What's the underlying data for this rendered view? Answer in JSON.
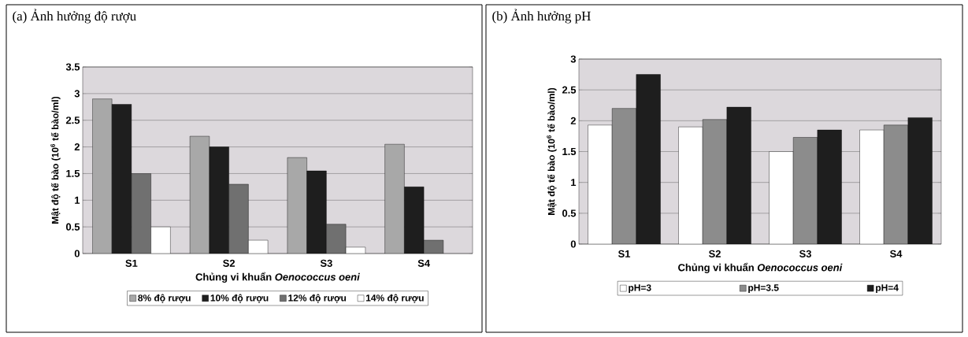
{
  "chart_data": [
    {
      "type": "bar",
      "title": "(a) Ảnh hưởng độ rượu",
      "xlabel": "Chủng vi khuẩn *Oenococcus oeni*",
      "ylabel": "Mật độ tế bào (10$^{6}$ tế bào/ml)",
      "categories": [
        "S1",
        "S2",
        "S3",
        "S4"
      ],
      "series": [
        {
          "name": "8% độ rượu",
          "color": "#a8a8a8",
          "values": [
            2.9,
            2.2,
            1.8,
            2.05
          ]
        },
        {
          "name": "10% độ rượu",
          "color": "#1e1e1e",
          "values": [
            2.8,
            2.0,
            1.55,
            1.25
          ]
        },
        {
          "name": "12% độ rượu",
          "color": "#707070",
          "values": [
            1.5,
            1.3,
            0.55,
            0.25
          ]
        },
        {
          "name": "14% độ rượu",
          "color": "#ffffff",
          "values": [
            0.5,
            0.25,
            0.12,
            null
          ]
        }
      ],
      "ylim": [
        0,
        3.5
      ],
      "yticks": [
        0,
        0.5,
        1,
        1.5,
        2,
        2.5,
        3,
        3.5
      ],
      "grid": "y",
      "legend": "bottom"
    },
    {
      "type": "bar",
      "title": "(b) Ảnh hưởng pH",
      "xlabel": "Chủng vi khuẩn *Oenococcus oeni*",
      "ylabel": "Mật độ tế bào (10$^{6}$ tế bào/ml)",
      "categories": [
        "S1",
        "S2",
        "S3",
        "S4"
      ],
      "series": [
        {
          "name": "pH=3",
          "color": "#ffffff",
          "values": [
            1.93,
            1.9,
            1.5,
            1.85
          ]
        },
        {
          "name": "pH=3.5",
          "color": "#8c8c8c",
          "values": [
            2.2,
            2.02,
            1.73,
            1.93
          ]
        },
        {
          "name": "pH=4",
          "color": "#1e1e1e",
          "values": [
            2.75,
            2.22,
            1.85,
            2.05
          ]
        }
      ],
      "ylim": [
        0,
        3
      ],
      "yticks": [
        0,
        0.5,
        1,
        1.5,
        2,
        2.5,
        3
      ],
      "grid": "y",
      "legend": "bottom"
    }
  ]
}
